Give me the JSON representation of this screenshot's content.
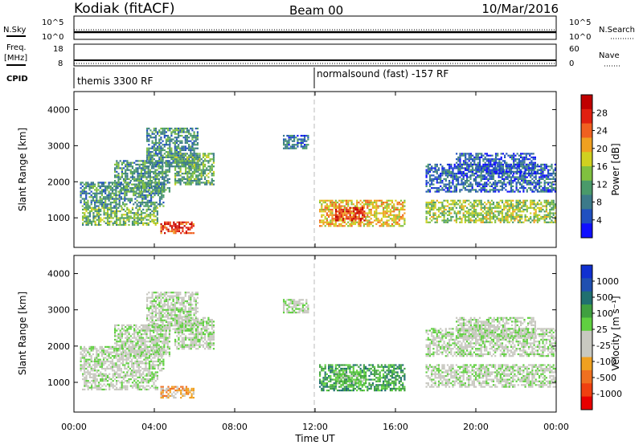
{
  "header": {
    "station": "Kodiak (fitACF)",
    "beam": "Beam 00",
    "date": "10/Mar/2016"
  },
  "top_panels": {
    "nsky_label": "N.Sky",
    "nsearch_label": "N.Search",
    "noise_ticks_left": [
      "10^5",
      "10^0"
    ],
    "noise_ticks_right": [
      "10^5",
      "10^0"
    ],
    "freq_label_line1": "Freq.",
    "freq_label_line2": "[MHz]",
    "freq_ticks": [
      "18",
      "8"
    ],
    "nave_label": "Nave",
    "nave_ticks": [
      "60",
      "0"
    ],
    "cpid_label": "CPID",
    "cpid_segments": [
      {
        "name": "themis 3300 RF",
        "start_hour": 0
      },
      {
        "name": "normalsound (fast) -157 RF",
        "start_hour": 12
      }
    ]
  },
  "x_axis": {
    "label": "Time UT",
    "ticks": [
      "00:00",
      "04:00",
      "08:00",
      "12:00",
      "16:00",
      "20:00",
      "00:00"
    ],
    "range_hours": [
      0,
      24
    ]
  },
  "colors": {
    "power_scale": [
      "#1010ff",
      "#2050c0",
      "#3c7a8a",
      "#4a9a6a",
      "#80c040",
      "#d0d020",
      "#f0a020",
      "#f06020",
      "#e02010",
      "#c00000"
    ],
    "velocity_scale": [
      "#e80000",
      "#f04010",
      "#f07020",
      "#f0a020",
      "#c8c8c0",
      "#c8c8c0",
      "#60d040",
      "#40a040",
      "#207070",
      "#2050b0",
      "#1030d0"
    ],
    "ground_scatter": "#c8c8c0"
  },
  "chart_data": [
    {
      "type": "heatmap",
      "panel": "power",
      "ylabel": "Slant Range [km]",
      "ylim": [
        180,
        4500
      ],
      "y_ticks": [
        "4000",
        "3000",
        "2000",
        "1000"
      ],
      "y_tick_values": [
        4000,
        3000,
        2000,
        1000
      ],
      "colorbar_label": "Power [dB]",
      "colorbar_range": [
        0,
        30
      ],
      "colorbar_ticks": [
        "28",
        "24",
        "20",
        "16",
        "12",
        "8",
        "4"
      ],
      "colorbar_tick_values": [
        28,
        24,
        20,
        16,
        12,
        8,
        4
      ],
      "regions": [
        {
          "t0": 0.4,
          "t1": 4.2,
          "r0": 780,
          "r1": 1300,
          "level": 12
        },
        {
          "t0": 0.3,
          "t1": 4.5,
          "r0": 1300,
          "r1": 2000,
          "level": 9
        },
        {
          "t0": 2.0,
          "t1": 4.8,
          "r0": 1700,
          "r1": 2600,
          "level": 10
        },
        {
          "t0": 3.6,
          "t1": 6.2,
          "r0": 2400,
          "r1": 3500,
          "level": 9
        },
        {
          "t0": 5.0,
          "t1": 7.0,
          "r0": 1900,
          "r1": 2800,
          "level": 11
        },
        {
          "t0": 4.3,
          "t1": 6.0,
          "r0": 550,
          "r1": 900,
          "level": 25
        },
        {
          "t0": 10.4,
          "t1": 11.7,
          "r0": 2900,
          "r1": 3300,
          "level": 7
        },
        {
          "t0": 12.2,
          "t1": 16.5,
          "r0": 750,
          "r1": 1500,
          "level": 18
        },
        {
          "t0": 13.0,
          "t1": 14.5,
          "r0": 900,
          "r1": 1300,
          "level": 25
        },
        {
          "t0": 17.5,
          "t1": 24.0,
          "r0": 850,
          "r1": 1500,
          "level": 14
        },
        {
          "t0": 17.5,
          "t1": 24.0,
          "r0": 1700,
          "r1": 2500,
          "level": 6
        },
        {
          "t0": 19.0,
          "t1": 23.0,
          "r0": 2200,
          "r1": 2800,
          "level": 5
        }
      ]
    },
    {
      "type": "heatmap",
      "panel": "velocity",
      "ylabel": "Slant Range [km]",
      "ylim": [
        180,
        4500
      ],
      "y_ticks": [
        "4000",
        "3000",
        "2000",
        "1000"
      ],
      "y_tick_values": [
        4000,
        3000,
        2000,
        1000
      ],
      "colorbar_label": "Velocity [m s⁻¹]",
      "colorbar_ticks": [
        "1000",
        "500",
        "100",
        "25",
        "-25",
        "-100",
        "-500",
        "-1000"
      ],
      "regions": [
        {
          "t0": 0.4,
          "t1": 4.2,
          "r0": 780,
          "r1": 1300,
          "level": 5
        },
        {
          "t0": 0.3,
          "t1": 4.5,
          "r0": 1300,
          "r1": 2000,
          "level": 5
        },
        {
          "t0": 2.0,
          "t1": 4.8,
          "r0": 1700,
          "r1": 2600,
          "level": 5
        },
        {
          "t0": 3.6,
          "t1": 6.2,
          "r0": 2400,
          "r1": 3500,
          "level": 5
        },
        {
          "t0": 5.0,
          "t1": 7.0,
          "r0": 1900,
          "r1": 2800,
          "level": 5
        },
        {
          "t0": 4.3,
          "t1": 6.0,
          "r0": 550,
          "r1": 900,
          "level": 3
        },
        {
          "t0": 10.4,
          "t1": 11.7,
          "r0": 2900,
          "r1": 3300,
          "level": 5
        },
        {
          "t0": 12.2,
          "t1": 16.5,
          "r0": 750,
          "r1": 1500,
          "level": 7
        },
        {
          "t0": 13.0,
          "t1": 14.5,
          "r0": 900,
          "r1": 1300,
          "level": 6
        },
        {
          "t0": 17.5,
          "t1": 24.0,
          "r0": 850,
          "r1": 1500,
          "level": 5
        },
        {
          "t0": 17.5,
          "t1": 24.0,
          "r0": 1700,
          "r1": 2500,
          "level": 5
        },
        {
          "t0": 19.0,
          "t1": 23.0,
          "r0": 2200,
          "r1": 2800,
          "level": 5
        }
      ]
    }
  ]
}
